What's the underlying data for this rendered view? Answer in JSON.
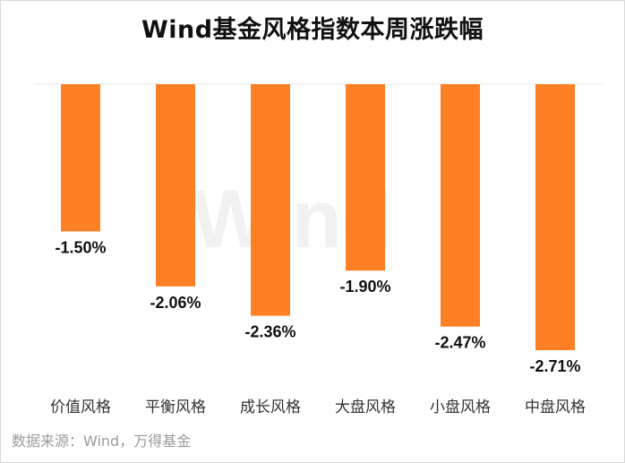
{
  "chart_data": {
    "type": "bar",
    "title": "Wind基金风格指数本周涨跌幅",
    "categories": [
      "价值风格",
      "平衡风格",
      "成长风格",
      "大盘风格",
      "小盘风格",
      "中盘风格"
    ],
    "values": [
      -1.5,
      -2.06,
      -2.36,
      -1.9,
      -2.47,
      -2.71
    ],
    "data_labels": [
      "-1.50%",
      "-2.06%",
      "-2.36%",
      "-1.90%",
      "-2.47%",
      "-2.71%"
    ],
    "ylim": [
      -2.71,
      0
    ],
    "grid": false,
    "legend": "none",
    "bar_color": "#FF8024",
    "watermark": "Wind",
    "source": "数据来源：Wind，万得基金"
  }
}
